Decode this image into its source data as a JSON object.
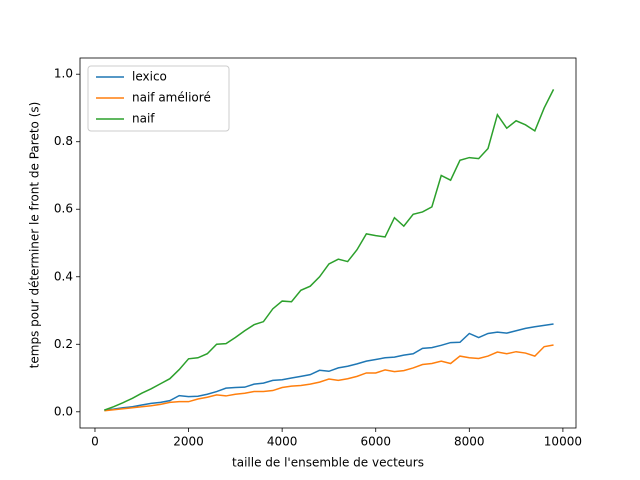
{
  "chart_data": {
    "type": "line",
    "xlabel": "taille de l'ensemble de vecteurs",
    "ylabel": "temps pour déterminer le front de Pareto (s)",
    "x": [
      200,
      400,
      600,
      800,
      1000,
      1200,
      1400,
      1600,
      1800,
      2000,
      2200,
      2400,
      2600,
      2800,
      3000,
      3200,
      3400,
      3600,
      3800,
      4000,
      4200,
      4400,
      4600,
      4800,
      5000,
      5200,
      5400,
      5600,
      5800,
      6000,
      6200,
      6400,
      6600,
      6800,
      7000,
      7200,
      7400,
      7600,
      7800,
      8000,
      8200,
      8400,
      8600,
      8800,
      9000,
      9200,
      9400,
      9600,
      9800
    ],
    "series": [
      {
        "name": "lexico",
        "color": "#1f77b4",
        "values": [
          0.005,
          0.008,
          0.012,
          0.015,
          0.02,
          0.025,
          0.028,
          0.033,
          0.048,
          0.045,
          0.046,
          0.052,
          0.06,
          0.07,
          0.072,
          0.073,
          0.082,
          0.085,
          0.093,
          0.095,
          0.1,
          0.105,
          0.11,
          0.123,
          0.12,
          0.13,
          0.135,
          0.142,
          0.15,
          0.155,
          0.16,
          0.162,
          0.168,
          0.172,
          0.188,
          0.19,
          0.197,
          0.205,
          0.206,
          0.232,
          0.22,
          0.232,
          0.236,
          0.233,
          0.24,
          0.247,
          0.252,
          0.256,
          0.26
        ]
      },
      {
        "name": "naif amélioré",
        "color": "#ff7f0e",
        "values": [
          0.003,
          0.006,
          0.009,
          0.012,
          0.015,
          0.018,
          0.022,
          0.028,
          0.03,
          0.03,
          0.038,
          0.043,
          0.05,
          0.047,
          0.052,
          0.055,
          0.06,
          0.06,
          0.063,
          0.072,
          0.076,
          0.078,
          0.082,
          0.088,
          0.097,
          0.093,
          0.098,
          0.105,
          0.115,
          0.115,
          0.124,
          0.119,
          0.122,
          0.13,
          0.14,
          0.143,
          0.15,
          0.143,
          0.165,
          0.16,
          0.158,
          0.165,
          0.177,
          0.172,
          0.178,
          0.174,
          0.165,
          0.193,
          0.198
        ]
      },
      {
        "name": "naif",
        "color": "#2ca02c",
        "values": [
          0.005,
          0.015,
          0.027,
          0.04,
          0.055,
          0.068,
          0.083,
          0.098,
          0.125,
          0.157,
          0.16,
          0.172,
          0.2,
          0.202,
          0.22,
          0.24,
          0.258,
          0.267,
          0.305,
          0.328,
          0.326,
          0.36,
          0.372,
          0.4,
          0.438,
          0.452,
          0.445,
          0.48,
          0.527,
          0.522,
          0.518,
          0.575,
          0.55,
          0.585,
          0.592,
          0.607,
          0.7,
          0.686,
          0.745,
          0.753,
          0.75,
          0.78,
          0.88,
          0.84,
          0.862,
          0.85,
          0.832,
          0.9,
          0.955
        ]
      }
    ],
    "xlim": [
      -320,
      10280
    ],
    "ylim": [
      -0.048,
      1.048
    ],
    "xticks": [
      0,
      2000,
      4000,
      6000,
      8000,
      10000
    ],
    "yticks": [
      {
        "value": 0,
        "label": "0.0"
      },
      {
        "value": 0.2,
        "label": "0.2"
      },
      {
        "value": 0.4,
        "label": "0.4"
      },
      {
        "value": 0.6,
        "label": "0.6"
      },
      {
        "value": 0.8,
        "label": "0.8"
      },
      {
        "value": 1,
        "label": "1.0"
      }
    ],
    "legend": "upper left"
  }
}
